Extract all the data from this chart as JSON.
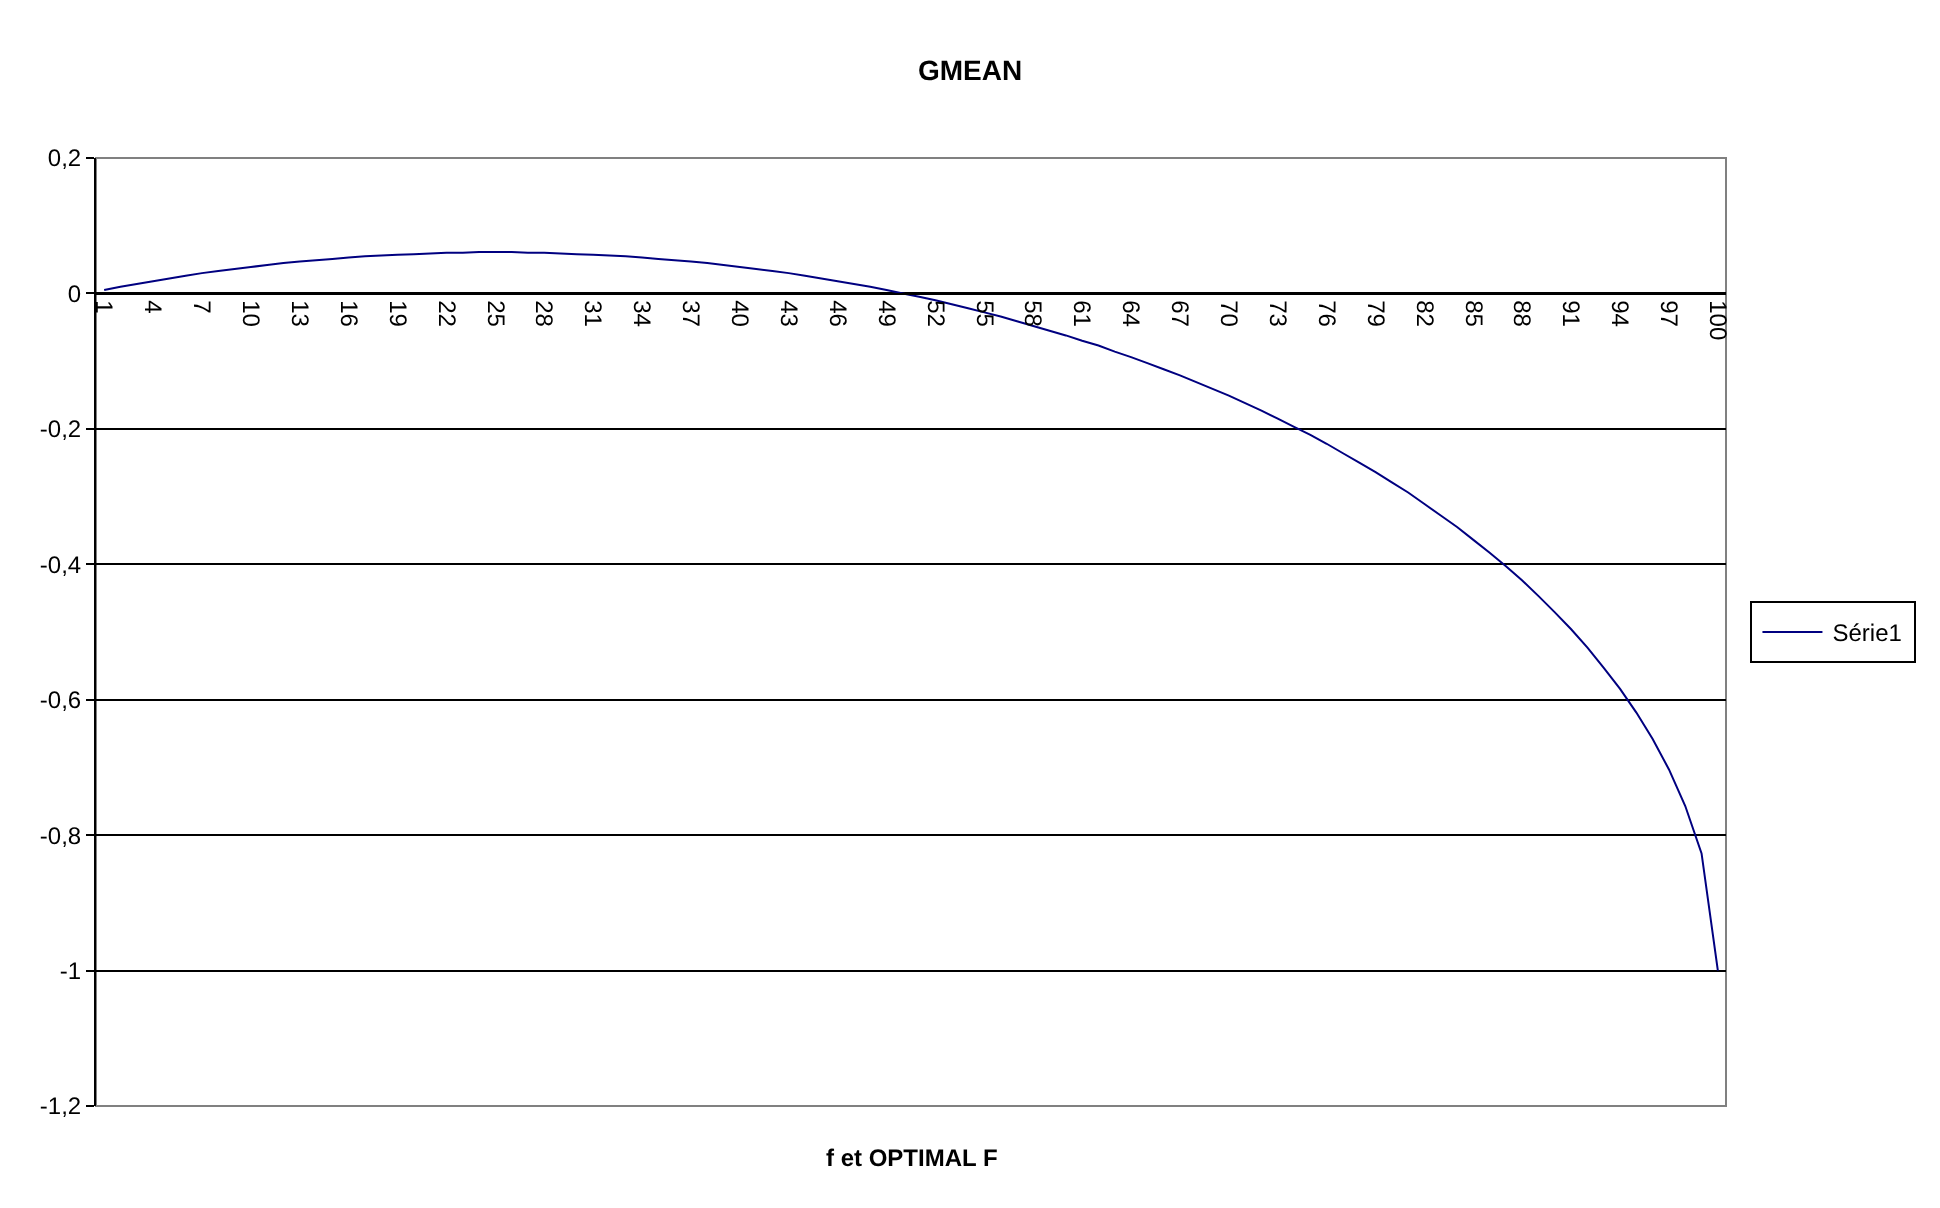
{
  "chart_data": {
    "type": "line",
    "title": "GMEAN",
    "xlabel": "f et OPTIMAL F",
    "categories": [
      "1",
      null,
      null,
      "4",
      null,
      null,
      "7",
      null,
      null,
      "10",
      null,
      null,
      "13",
      null,
      null,
      "16",
      null,
      null,
      "19",
      null,
      null,
      "22",
      null,
      null,
      "25",
      null,
      null,
      "28",
      null,
      null,
      "31",
      null,
      null,
      "34",
      null,
      null,
      "37",
      null,
      null,
      "40",
      null,
      null,
      "43",
      null,
      null,
      "46",
      null,
      null,
      "49",
      null,
      null,
      "52",
      null,
      null,
      "55",
      null,
      null,
      "58",
      null,
      null,
      "61",
      null,
      null,
      "64",
      null,
      null,
      "67",
      null,
      null,
      "70",
      null,
      null,
      "73",
      null,
      null,
      "76",
      null,
      null,
      "79",
      null,
      null,
      "82",
      null,
      null,
      "85",
      null,
      null,
      "88",
      null,
      null,
      "91",
      null,
      null,
      "94",
      null,
      null,
      "97",
      null,
      null,
      "100"
    ],
    "series": [
      {
        "name": "Série1",
        "color": "#000080",
        "values": [
          0.005,
          0.01,
          0.014,
          0.018,
          0.022,
          0.026,
          0.03,
          0.033,
          0.036,
          0.039,
          0.042,
          0.045,
          0.047,
          0.049,
          0.051,
          0.053,
          0.055,
          0.056,
          0.057,
          0.058,
          0.059,
          0.06,
          0.06,
          0.061,
          0.061,
          0.061,
          0.06,
          0.06,
          0.059,
          0.058,
          0.057,
          0.056,
          0.055,
          0.053,
          0.051,
          0.049,
          0.047,
          0.045,
          0.042,
          0.039,
          0.036,
          0.033,
          0.03,
          0.026,
          0.022,
          0.018,
          0.014,
          0.01,
          0.005,
          0,
          -0.005,
          -0.01,
          -0.016,
          -0.022,
          -0.028,
          -0.034,
          -0.041,
          -0.048,
          -0.055,
          -0.062,
          -0.07,
          -0.077,
          -0.086,
          -0.094,
          -0.103,
          -0.112,
          -0.121,
          -0.131,
          -0.141,
          -0.151,
          -0.162,
          -0.173,
          -0.185,
          -0.197,
          -0.209,
          -0.222,
          -0.236,
          -0.25,
          -0.264,
          -0.279,
          -0.294,
          -0.311,
          -0.328,
          -0.345,
          -0.364,
          -0.383,
          -0.403,
          -0.424,
          -0.447,
          -0.471,
          -0.496,
          -0.523,
          -0.553,
          -0.584,
          -0.619,
          -0.658,
          -0.703,
          -0.757,
          -0.827,
          -1
        ]
      }
    ],
    "ylim": [
      -1.2,
      0.2
    ],
    "yticks": [
      {
        "value": -1.2,
        "label": "-1,2"
      },
      {
        "value": -1,
        "label": "-1"
      },
      {
        "value": -0.8,
        "label": "-0,8"
      },
      {
        "value": -0.6,
        "label": "-0,6"
      },
      {
        "value": -0.4,
        "label": "-0,4"
      },
      {
        "value": -0.2,
        "label": "-0,2"
      },
      {
        "value": 0,
        "label": "0"
      },
      {
        "value": 0.2,
        "label": "0,2"
      }
    ],
    "grid": "y",
    "legend": "right",
    "marker": "none",
    "line_style": "solid"
  }
}
